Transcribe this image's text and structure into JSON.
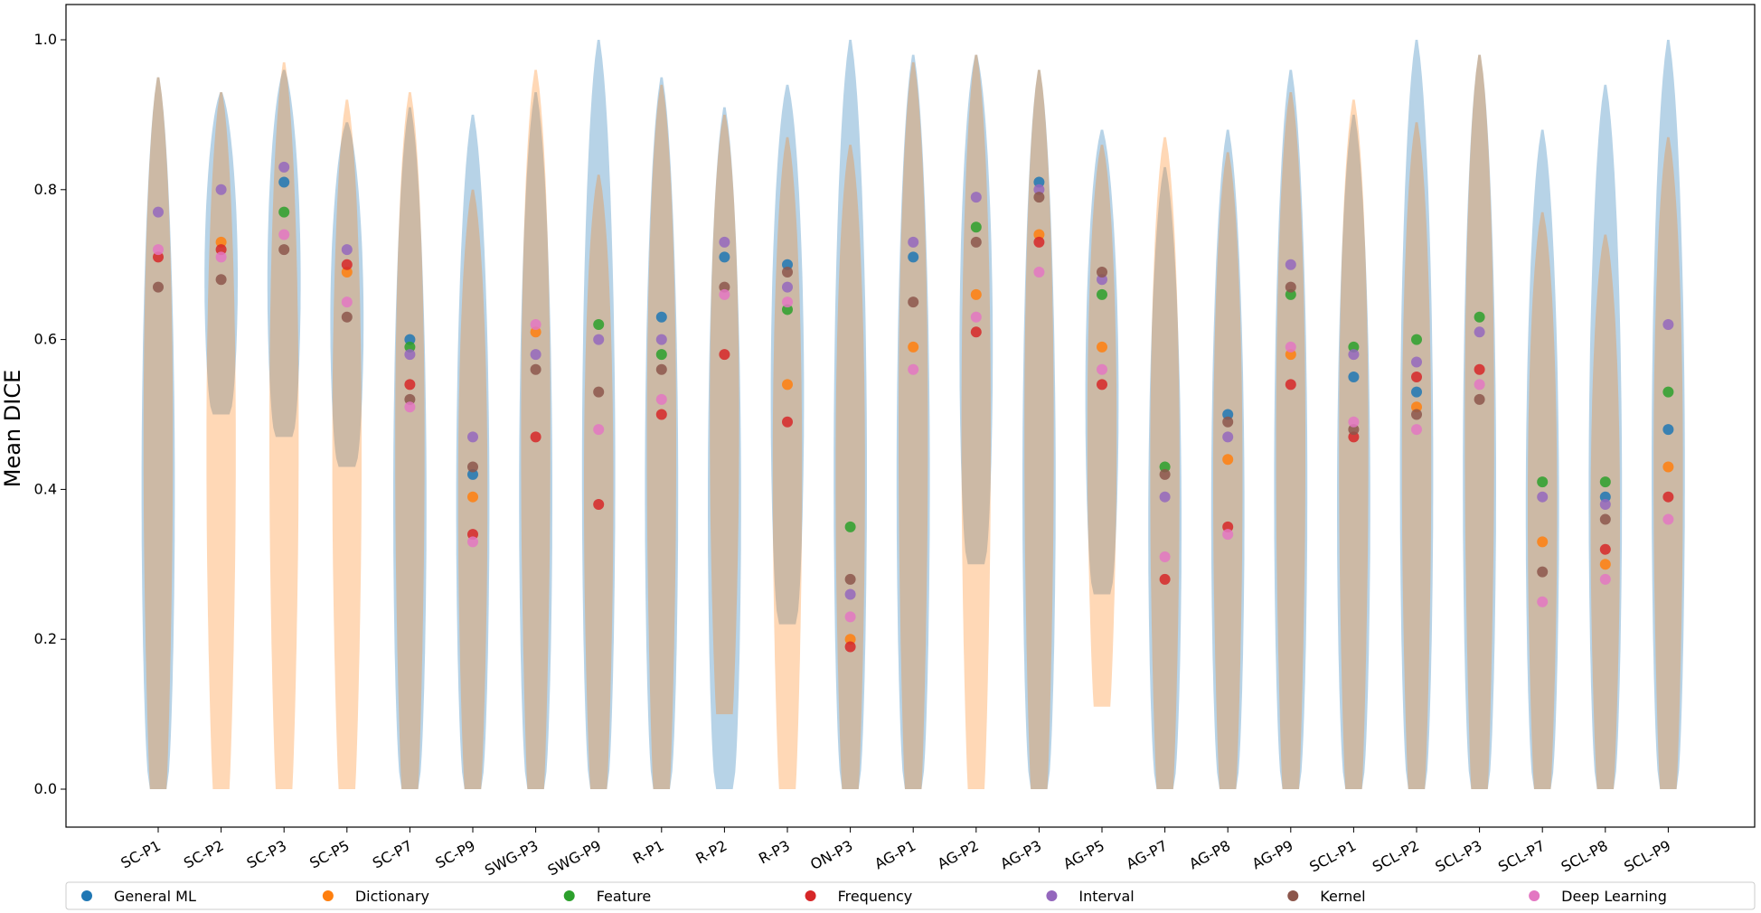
{
  "chart_data": {
    "type": "violin",
    "ylabel": "Mean DICE",
    "xlabel": "",
    "ylim": [
      0,
      1
    ],
    "yticks": [
      "0.0",
      "0.2",
      "0.4",
      "0.6",
      "0.8",
      "1.0"
    ],
    "categories": [
      "SC-P1",
      "SC-P2",
      "SC-P3",
      "SC-P5",
      "SC-P7",
      "SC-P9",
      "SWG-P3",
      "SWG-P9",
      "R-P1",
      "R-P2",
      "R-P3",
      "ON-P3",
      "AG-P1",
      "AG-P2",
      "AG-P3",
      "AG-P5",
      "AG-P7",
      "AG-P8",
      "AG-P9",
      "SCL-P1",
      "SCL-P2",
      "SCL-P3",
      "SCL-P7",
      "SCL-P8",
      "SCL-P9"
    ],
    "series": [
      {
        "name": "General ML",
        "color": "#1f77b4",
        "values": [
          null,
          null,
          0.81,
          null,
          0.6,
          0.42,
          null,
          null,
          0.63,
          0.71,
          0.7,
          null,
          0.71,
          null,
          0.81,
          null,
          null,
          0.5,
          null,
          0.55,
          0.53,
          null,
          null,
          0.39,
          0.48
        ]
      },
      {
        "name": "Dictionary",
        "color": "#ff7f0e",
        "values": [
          null,
          0.73,
          null,
          0.69,
          null,
          0.39,
          0.61,
          null,
          null,
          null,
          0.54,
          0.2,
          0.59,
          0.66,
          0.74,
          0.59,
          null,
          0.44,
          0.58,
          null,
          0.51,
          null,
          0.33,
          0.3,
          0.43
        ]
      },
      {
        "name": "Feature",
        "color": "#2ca02c",
        "values": [
          null,
          null,
          0.77,
          null,
          0.59,
          null,
          null,
          0.62,
          0.58,
          null,
          0.64,
          0.35,
          null,
          0.75,
          null,
          0.66,
          0.43,
          null,
          0.66,
          0.59,
          0.6,
          0.63,
          0.41,
          0.41,
          0.53
        ]
      },
      {
        "name": "Frequency",
        "color": "#d62728",
        "values": [
          0.71,
          0.72,
          null,
          0.7,
          0.54,
          0.34,
          0.47,
          0.38,
          0.5,
          0.58,
          0.49,
          0.19,
          null,
          0.61,
          0.73,
          0.54,
          0.28,
          0.35,
          0.54,
          0.47,
          0.55,
          0.56,
          null,
          0.32,
          0.39
        ]
      },
      {
        "name": "Interval",
        "color": "#9467bd",
        "values": [
          0.77,
          0.8,
          0.83,
          0.72,
          0.58,
          0.47,
          0.58,
          0.6,
          0.6,
          0.73,
          0.67,
          0.26,
          0.73,
          0.79,
          0.8,
          0.68,
          0.39,
          0.47,
          0.7,
          0.58,
          0.57,
          0.61,
          0.39,
          0.38,
          0.62
        ]
      },
      {
        "name": "Kernel",
        "color": "#8c564b",
        "values": [
          0.67,
          0.68,
          0.72,
          0.63,
          0.52,
          0.43,
          0.56,
          0.53,
          0.56,
          0.67,
          0.69,
          0.28,
          0.65,
          0.73,
          0.79,
          0.69,
          0.42,
          0.49,
          0.67,
          0.48,
          0.5,
          0.52,
          0.29,
          0.36,
          null
        ]
      },
      {
        "name": "Deep Learning",
        "color": "#e377c2",
        "values": [
          0.72,
          0.71,
          0.74,
          0.65,
          0.51,
          0.33,
          0.62,
          0.48,
          0.52,
          0.66,
          0.65,
          0.23,
          0.56,
          0.63,
          0.69,
          0.56,
          0.31,
          0.34,
          0.59,
          0.49,
          0.48,
          0.54,
          0.25,
          0.28,
          0.36
        ]
      }
    ],
    "violins": {
      "description": "two overlapping violin distributions per category (blue and orange), values are half-widths in category-spacing fractions at DICE levels",
      "blue_color": "#1f77b4",
      "orange_color": "#ff7f0e"
    },
    "legend": {
      "placement": "bottom",
      "ncol": 7
    }
  }
}
